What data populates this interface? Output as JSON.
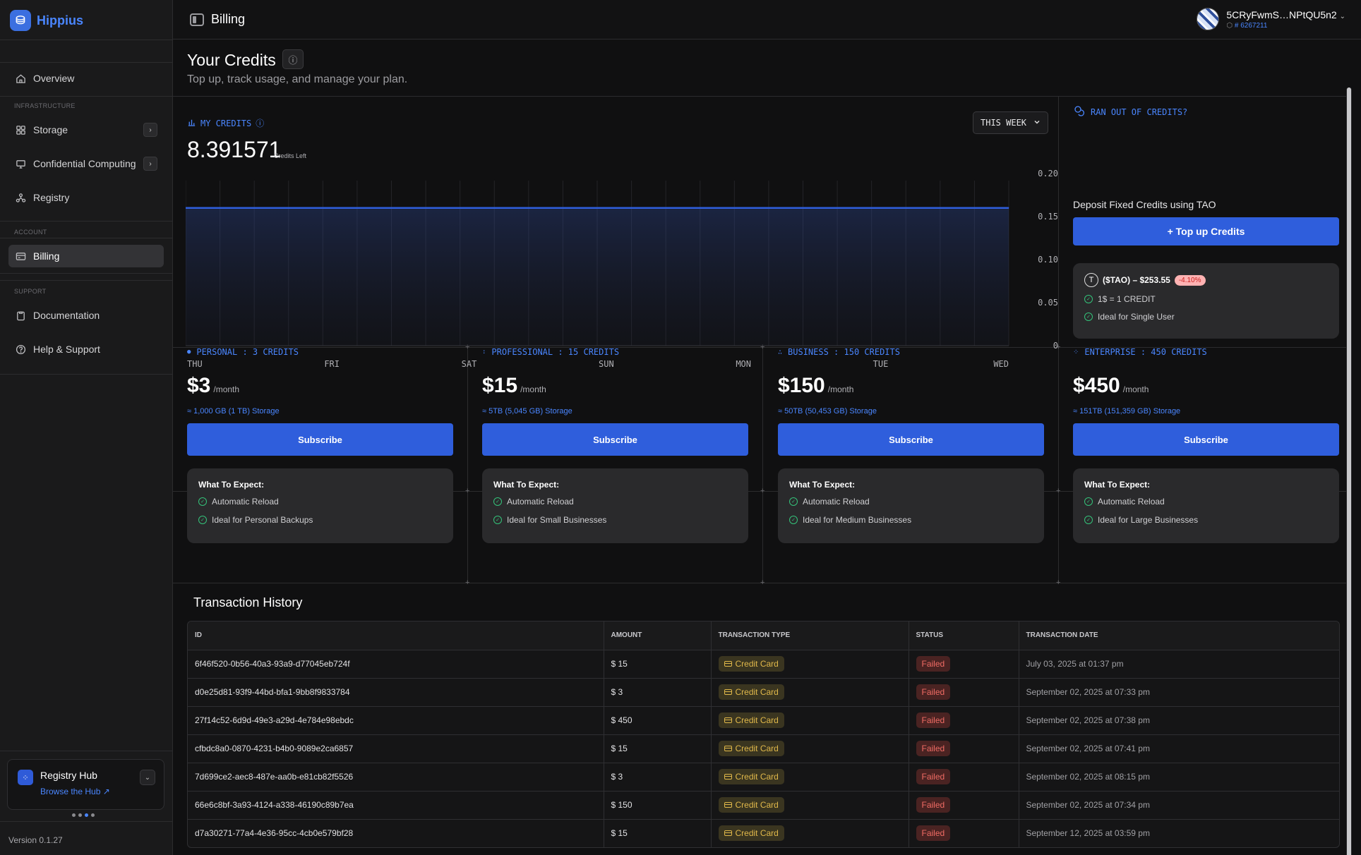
{
  "app": {
    "brand": "Hippius",
    "version": "Version 0.1.27"
  },
  "sidebar": {
    "overview": "Overview",
    "infra_label": "INFRASTRUCTURE",
    "storage": "Storage",
    "confidential": "Confidential Computing",
    "registry": "Registry",
    "account_label": "ACCOUNT",
    "billing": "Billing",
    "support_label": "SUPPORT",
    "documentation": "Documentation",
    "help": "Help & Support",
    "hub": {
      "title": "Registry Hub",
      "link": "Browse the Hub"
    }
  },
  "topbar": {
    "title": "Billing",
    "username": "5CRyFwmS…NPtQU5n2",
    "user_id": "# 6267211"
  },
  "page": {
    "title": "Your Credits",
    "subtitle": "Top up, track usage, and manage your plan."
  },
  "credits": {
    "label": "MY CREDITS",
    "value": "8.391571",
    "value_label": "Credits Left",
    "period": "THIS WEEK"
  },
  "chart_data": {
    "type": "area",
    "categories": [
      "THU",
      "FRI",
      "SAT",
      "SUN",
      "MON",
      "TUE",
      "WED"
    ],
    "values": [
      0.16,
      0.16,
      0.16,
      0.16,
      0.16,
      0.16,
      0.16
    ],
    "yticks": [
      "0.20",
      "0.15",
      "0.10",
      "0.05",
      "0"
    ],
    "ylim": [
      0,
      0.2
    ],
    "grid": true,
    "color": "#2f5edc"
  },
  "topup": {
    "header": "RAN OUT OF CREDITS?",
    "deposit_label": "Deposit Fixed Credits using TAO",
    "button": "+ Top up Credits",
    "tao_price": "($TAO) – $253.55",
    "tao_change": "-4.10%",
    "features": [
      "1$ = 1 CREDIT",
      "Ideal for Single User"
    ]
  },
  "plans": [
    {
      "header": "PERSONAL : 3 CREDITS",
      "price": "$3",
      "per": "/month",
      "storage": "≈ 1,000 GB (1 TB) Storage",
      "button": "Subscribe",
      "expect": "What To Expect:",
      "features": [
        "Automatic Reload",
        "Ideal for Personal Backups"
      ]
    },
    {
      "header": "PROFESSIONAL : 15 CREDITS",
      "price": "$15",
      "per": "/month",
      "storage": "≈ 5TB (5,045 GB) Storage",
      "button": "Subscribe",
      "expect": "What To Expect:",
      "features": [
        "Automatic Reload",
        "Ideal for Small Businesses"
      ]
    },
    {
      "header": "BUSINESS : 150 CREDITS",
      "price": "$150",
      "per": "/month",
      "storage": "≈ 50TB (50,453 GB) Storage",
      "button": "Subscribe",
      "expect": "What To Expect:",
      "features": [
        "Automatic Reload",
        "Ideal for Medium Businesses"
      ]
    },
    {
      "header": "ENTERPRISE : 450 CREDITS",
      "price": "$450",
      "per": "/month",
      "storage": "≈ 151TB (151,359 GB) Storage",
      "button": "Subscribe",
      "expect": "What To Expect:",
      "features": [
        "Automatic Reload",
        "Ideal for Large Businesses"
      ]
    }
  ],
  "transactions": {
    "title": "Transaction History",
    "columns": [
      "ID",
      "AMOUNT",
      "TRANSACTION TYPE",
      "STATUS",
      "TRANSACTION DATE"
    ],
    "rows": [
      {
        "id": "6f46f520-0b56-40a3-93a9-d77045eb724f",
        "amount": "$ 15",
        "type": "Credit Card",
        "status": "Failed",
        "date": "July 03, 2025 at 01:37 pm"
      },
      {
        "id": "d0e25d81-93f9-44bd-bfa1-9bb8f9833784",
        "amount": "$ 3",
        "type": "Credit Card",
        "status": "Failed",
        "date": "September 02, 2025 at 07:33 pm"
      },
      {
        "id": "27f14c52-6d9d-49e3-a29d-4e784e98ebdc",
        "amount": "$ 450",
        "type": "Credit Card",
        "status": "Failed",
        "date": "September 02, 2025 at 07:38 pm"
      },
      {
        "id": "cfbdc8a0-0870-4231-b4b0-9089e2ca6857",
        "amount": "$ 15",
        "type": "Credit Card",
        "status": "Failed",
        "date": "September 02, 2025 at 07:41 pm"
      },
      {
        "id": "7d699ce2-aec8-487e-aa0b-e81cb82f5526",
        "amount": "$ 3",
        "type": "Credit Card",
        "status": "Failed",
        "date": "September 02, 2025 at 08:15 pm"
      },
      {
        "id": "66e6c8bf-3a93-4124-a338-46190c89b7ea",
        "amount": "$ 150",
        "type": "Credit Card",
        "status": "Failed",
        "date": "September 02, 2025 at 07:34 pm"
      },
      {
        "id": "d7a30271-77a4-4e36-95cc-4cb0e579bf28",
        "amount": "$ 15",
        "type": "Credit Card",
        "status": "Failed",
        "date": "September 12, 2025 at 03:59 pm"
      }
    ]
  }
}
